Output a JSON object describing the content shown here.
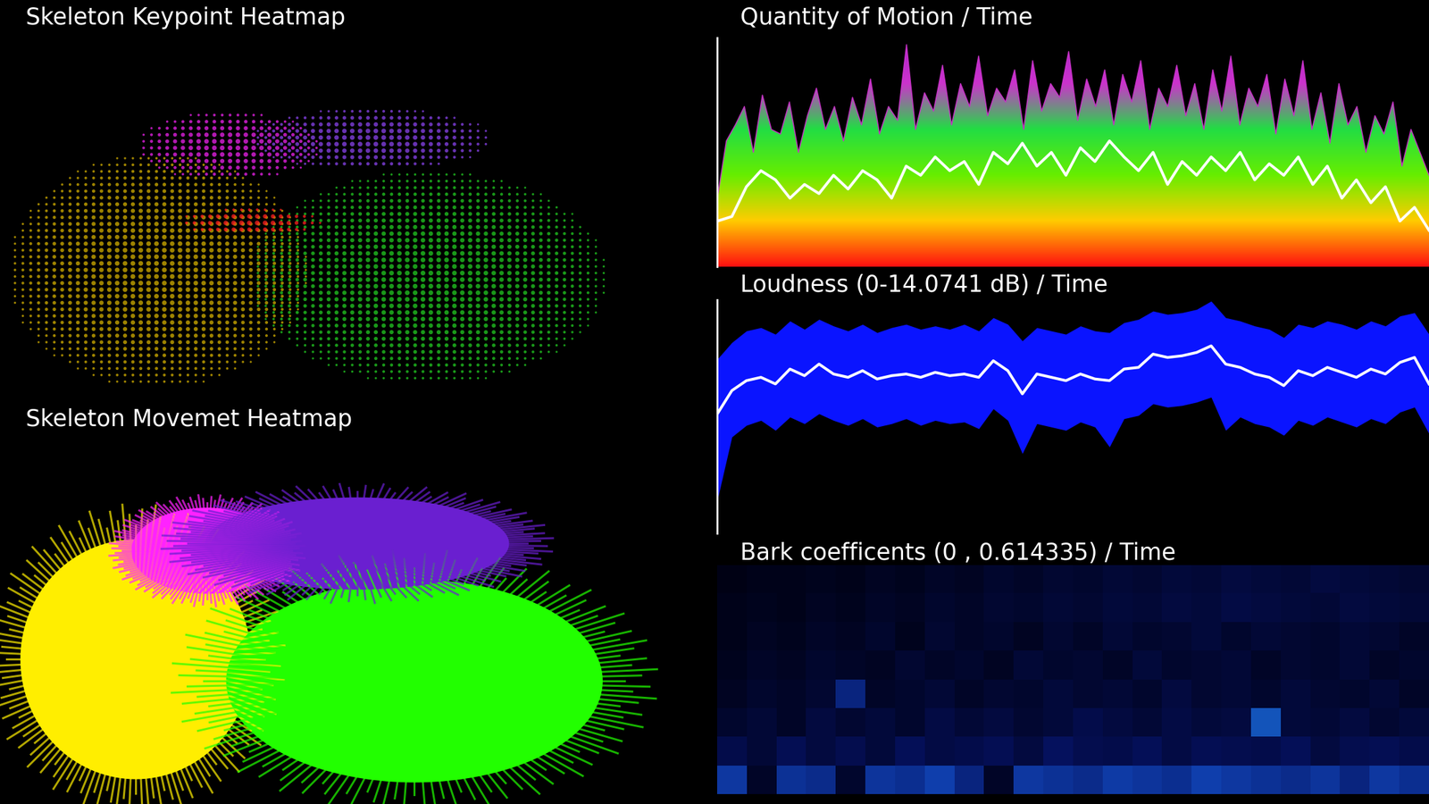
{
  "chart_data": [
    {
      "type": "scatter",
      "title": "Skeleton Keypoint Heatmap",
      "xlim": [
        0,
        1
      ],
      "ylim": [
        0,
        1
      ],
      "tick_labels": false,
      "regions": [
        {
          "color": "#d4b000",
          "center": [
            0.22,
            0.38
          ],
          "size": [
            0.42,
            0.68
          ]
        },
        {
          "color": "#22cc22",
          "center": [
            0.6,
            0.36
          ],
          "size": [
            0.5,
            0.62
          ]
        },
        {
          "color": "#ff2020",
          "center": [
            0.35,
            0.52
          ],
          "size": [
            0.2,
            0.08
          ]
        },
        {
          "color": "#ee22ee",
          "center": [
            0.32,
            0.74
          ],
          "size": [
            0.26,
            0.2
          ]
        },
        {
          "color": "#8a44ee",
          "center": [
            0.52,
            0.76
          ],
          "size": [
            0.34,
            0.18
          ]
        }
      ]
    },
    {
      "type": "lines",
      "title": "Skeleton Movemet Heatmap",
      "xlim": [
        0,
        1
      ],
      "ylim": [
        0,
        1
      ],
      "tick_labels": false,
      "regions": [
        {
          "color": "#ffee00",
          "center": [
            0.19,
            0.4
          ],
          "size": [
            0.38,
            0.78
          ]
        },
        {
          "color": "#22ff00",
          "center": [
            0.58,
            0.34
          ],
          "size": [
            0.62,
            0.66
          ]
        },
        {
          "color": "#ff22ff",
          "center": [
            0.29,
            0.7
          ],
          "size": [
            0.25,
            0.28
          ]
        },
        {
          "color": "#6a1fd0",
          "center": [
            0.5,
            0.72
          ],
          "size": [
            0.5,
            0.3
          ]
        }
      ]
    },
    {
      "type": "area",
      "title": "Quantity of Motion / Time",
      "xlim": [
        0,
        100
      ],
      "ylim": [
        0,
        1
      ],
      "tick_labels": false,
      "color": "#cc33cc",
      "values": [
        0.3,
        0.55,
        0.62,
        0.7,
        0.5,
        0.75,
        0.6,
        0.58,
        0.72,
        0.5,
        0.66,
        0.78,
        0.6,
        0.7,
        0.55,
        0.74,
        0.62,
        0.82,
        0.58,
        0.7,
        0.64,
        0.97,
        0.6,
        0.76,
        0.68,
        0.88,
        0.62,
        0.8,
        0.7,
        0.92,
        0.66,
        0.78,
        0.72,
        0.86,
        0.6,
        0.9,
        0.68,
        0.8,
        0.74,
        0.94,
        0.64,
        0.82,
        0.7,
        0.86,
        0.62,
        0.84,
        0.72,
        0.9,
        0.6,
        0.78,
        0.7,
        0.88,
        0.66,
        0.8,
        0.6,
        0.86,
        0.68,
        0.92,
        0.62,
        0.78,
        0.7,
        0.84,
        0.58,
        0.82,
        0.66,
        0.9,
        0.6,
        0.76,
        0.54,
        0.8,
        0.62,
        0.7,
        0.5,
        0.66,
        0.58,
        0.72,
        0.44,
        0.6,
        0.5,
        0.4
      ],
      "smoothed": [
        0.2,
        0.22,
        0.35,
        0.42,
        0.38,
        0.3,
        0.36,
        0.32,
        0.4,
        0.34,
        0.42,
        0.38,
        0.3,
        0.44,
        0.4,
        0.48,
        0.42,
        0.46,
        0.36,
        0.5,
        0.45,
        0.54,
        0.44,
        0.5,
        0.4,
        0.52,
        0.46,
        0.55,
        0.48,
        0.42,
        0.5,
        0.36,
        0.46,
        0.4,
        0.48,
        0.42,
        0.5,
        0.38,
        0.45,
        0.4,
        0.48,
        0.36,
        0.44,
        0.3,
        0.38,
        0.28,
        0.35,
        0.2,
        0.26,
        0.16
      ]
    },
    {
      "type": "area",
      "title": "Loudness (0-14.0741 dB) / Time",
      "xlim": [
        0,
        100
      ],
      "ylim": [
        0,
        14.0741
      ],
      "tick_labels": false,
      "color": "#0a14ff",
      "smoothed": [
        7.2,
        8.6,
        9.2,
        9.4,
        9.0,
        9.9,
        9.5,
        10.2,
        9.6,
        9.4,
        9.8,
        9.3,
        9.5,
        9.6,
        9.4,
        9.7,
        9.5,
        9.6,
        9.4,
        10.4,
        9.8,
        8.4,
        9.6,
        9.4,
        9.2,
        9.6,
        9.3,
        9.2,
        9.9,
        10.0,
        10.8,
        10.6,
        10.7,
        10.9,
        11.3,
        10.2,
        10.0,
        9.6,
        9.4,
        8.9,
        9.8,
        9.5,
        10.0,
        9.7,
        9.4,
        9.9,
        9.6,
        10.3,
        10.6,
        9.0
      ],
      "upper": [
        10.5,
        11.5,
        12.2,
        12.4,
        12.0,
        12.8,
        12.3,
        12.9,
        12.5,
        12.2,
        12.6,
        12.1,
        12.4,
        12.6,
        12.3,
        12.5,
        12.3,
        12.6,
        12.2,
        13.0,
        12.6,
        11.6,
        12.4,
        12.2,
        12.0,
        12.5,
        12.2,
        12.1,
        12.7,
        12.9,
        13.4,
        13.2,
        13.3,
        13.5,
        14.0,
        13.0,
        12.8,
        12.5,
        12.3,
        11.8,
        12.6,
        12.4,
        12.8,
        12.6,
        12.3,
        12.8,
        12.5,
        13.1,
        13.3,
        12.0
      ],
      "lower": [
        2.0,
        5.8,
        6.5,
        6.8,
        6.2,
        7.0,
        6.6,
        7.2,
        6.8,
        6.5,
        6.9,
        6.4,
        6.6,
        6.9,
        6.5,
        6.8,
        6.6,
        6.7,
        6.3,
        7.5,
        6.8,
        4.8,
        6.6,
        6.4,
        6.2,
        6.7,
        6.4,
        5.2,
        6.9,
        7.1,
        7.8,
        7.6,
        7.7,
        7.9,
        8.2,
        6.2,
        7.0,
        6.6,
        6.4,
        5.9,
        6.8,
        6.5,
        7.0,
        6.7,
        6.4,
        6.9,
        6.6,
        7.3,
        7.6,
        6.0
      ]
    },
    {
      "type": "heatmap",
      "title": "Bark coefficents (0 , 0.614335) / Time",
      "xlim": [
        0,
        24
      ],
      "ylim": [
        0,
        8
      ],
      "tick_labels": false,
      "color_range": [
        0,
        0.614335
      ],
      "cells": [
        [
          0.28,
          0.05,
          0.26,
          0.24,
          0.06,
          0.27,
          0.25,
          0.3,
          0.22,
          0.05,
          0.28,
          0.26,
          0.24,
          0.29,
          0.27,
          0.25,
          0.3,
          0.28,
          0.26,
          0.24,
          0.27,
          0.22,
          0.28,
          0.25
        ],
        [
          0.12,
          0.08,
          0.14,
          0.1,
          0.13,
          0.09,
          0.15,
          0.11,
          0.12,
          0.14,
          0.1,
          0.16,
          0.13,
          0.12,
          0.15,
          0.11,
          0.14,
          0.13,
          0.12,
          0.15,
          0.1,
          0.13,
          0.14,
          0.12
        ],
        [
          0.06,
          0.08,
          0.05,
          0.1,
          0.07,
          0.09,
          0.06,
          0.11,
          0.08,
          0.1,
          0.07,
          0.09,
          0.12,
          0.1,
          0.08,
          0.11,
          0.09,
          0.1,
          0.34,
          0.09,
          0.08,
          0.1,
          0.07,
          0.09
        ],
        [
          0.04,
          0.06,
          0.05,
          0.07,
          0.22,
          0.05,
          0.06,
          0.08,
          0.05,
          0.07,
          0.06,
          0.09,
          0.07,
          0.08,
          0.06,
          0.1,
          0.07,
          0.08,
          0.06,
          0.09,
          0.07,
          0.06,
          0.08,
          0.05
        ],
        [
          0.03,
          0.05,
          0.04,
          0.06,
          0.05,
          0.04,
          0.07,
          0.05,
          0.06,
          0.04,
          0.08,
          0.06,
          0.07,
          0.05,
          0.09,
          0.06,
          0.07,
          0.08,
          0.05,
          0.07,
          0.06,
          0.08,
          0.05,
          0.06
        ],
        [
          0.02,
          0.04,
          0.03,
          0.05,
          0.04,
          0.06,
          0.03,
          0.07,
          0.05,
          0.06,
          0.04,
          0.07,
          0.05,
          0.08,
          0.06,
          0.07,
          0.09,
          0.06,
          0.08,
          0.07,
          0.06,
          0.08,
          0.07,
          0.05
        ],
        [
          0.02,
          0.03,
          0.02,
          0.04,
          0.03,
          0.05,
          0.04,
          0.06,
          0.05,
          0.07,
          0.06,
          0.08,
          0.07,
          0.09,
          0.08,
          0.1,
          0.09,
          0.11,
          0.1,
          0.09,
          0.08,
          0.1,
          0.09,
          0.08
        ],
        [
          0.01,
          0.02,
          0.02,
          0.03,
          0.02,
          0.04,
          0.03,
          0.05,
          0.04,
          0.06,
          0.05,
          0.07,
          0.06,
          0.08,
          0.07,
          0.09,
          0.08,
          0.1,
          0.09,
          0.08,
          0.1,
          0.09,
          0.08,
          0.07
        ]
      ]
    }
  ]
}
